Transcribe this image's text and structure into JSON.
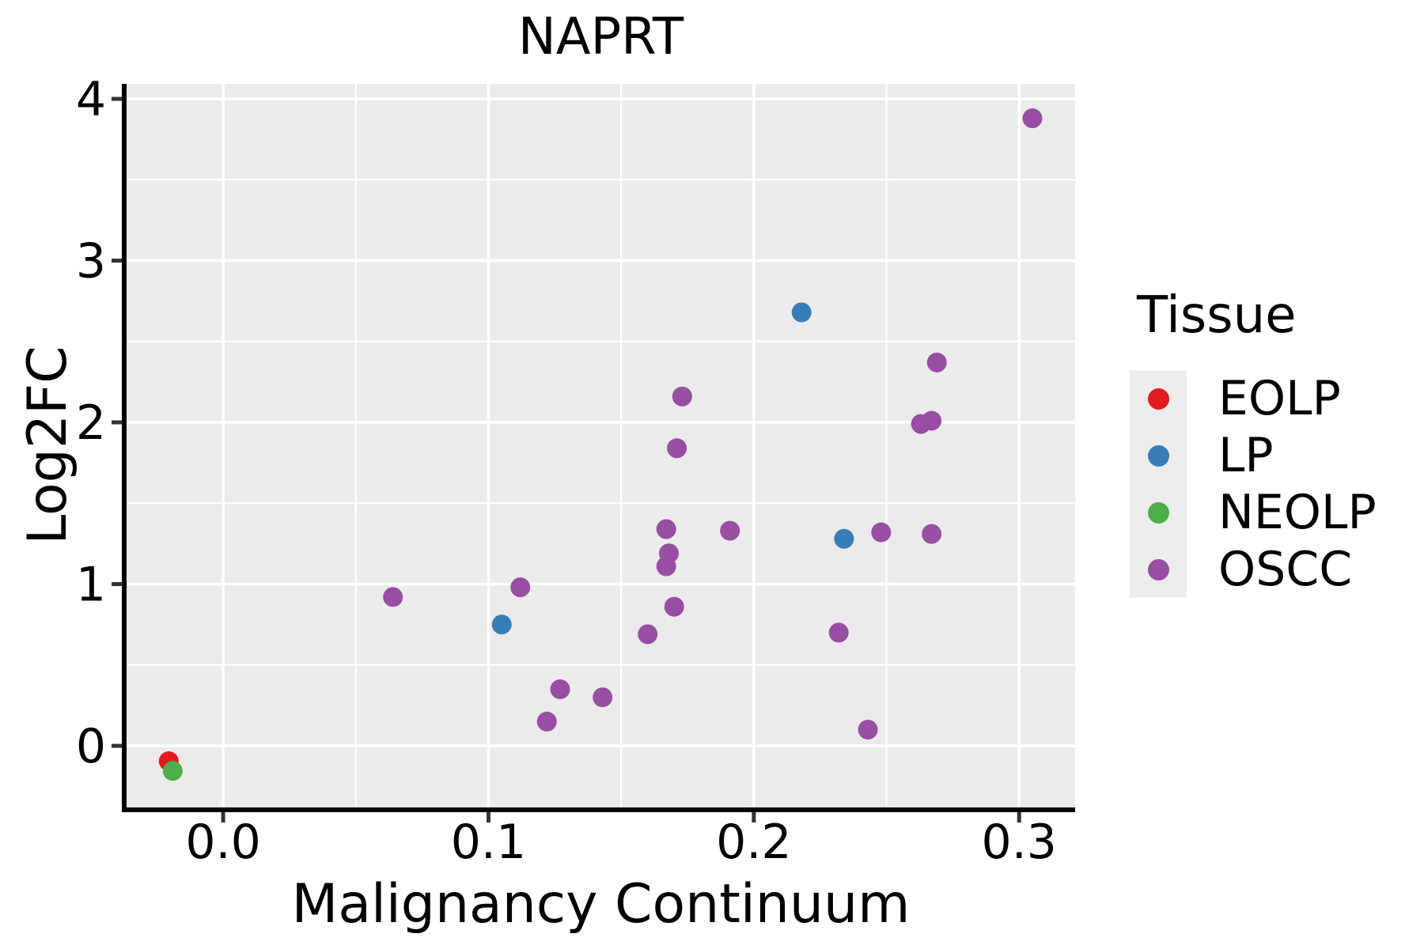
{
  "title": "NAPRT",
  "axes": {
    "x_label": "Malignancy Continuum",
    "y_label": "Log2FC"
  },
  "legend": {
    "title": "Tissue",
    "items": [
      {
        "label": "EOLP",
        "color": "#E41A1C"
      },
      {
        "label": "LP",
        "color": "#377EB8"
      },
      {
        "label": "NEOLP",
        "color": "#4DAF4A"
      },
      {
        "label": "OSCC",
        "color": "#984EA3"
      }
    ]
  },
  "colors": {
    "panel_background": "#EBEBEB",
    "grid": "#FFFFFF",
    "spine": "#000000",
    "tick": "#333333",
    "text": "#000000",
    "legend_key_background": "#ECECEC"
  },
  "chart_data": {
    "type": "scatter",
    "title": "NAPRT",
    "xlabel": "Malignancy Continuum",
    "ylabel": "Log2FC",
    "xlim": [
      -0.0364,
      0.3211
    ],
    "ylim": [
      -0.381,
      4.093
    ],
    "x_ticks": [
      0.0,
      0.1,
      0.2,
      0.3
    ],
    "x_tick_labels": [
      "0.0",
      "0.1",
      "0.2",
      "0.3"
    ],
    "y_ticks": [
      0,
      1,
      2,
      3,
      4
    ],
    "y_tick_labels": [
      "0",
      "1",
      "2",
      "3",
      "4"
    ],
    "x_minor_ticks": [
      0.05,
      0.15,
      0.25
    ],
    "y_minor_ticks": [
      0.5,
      1.5,
      2.5,
      3.5
    ],
    "grid": true,
    "legend_position": "right",
    "marker_radius": 12.5,
    "series": [
      {
        "name": "EOLP",
        "color": "#E41A1C",
        "points": [
          [
            -0.0205,
            -0.095
          ]
        ]
      },
      {
        "name": "LP",
        "color": "#377EB8",
        "points": [
          [
            0.105,
            0.75
          ],
          [
            0.218,
            2.68
          ],
          [
            0.234,
            1.28
          ]
        ]
      },
      {
        "name": "NEOLP",
        "color": "#4DAF4A",
        "points": [
          [
            -0.019,
            -0.155
          ]
        ]
      },
      {
        "name": "OSCC",
        "color": "#984EA3",
        "points": [
          [
            0.064,
            0.92
          ],
          [
            0.112,
            0.98
          ],
          [
            0.122,
            0.15
          ],
          [
            0.127,
            0.35
          ],
          [
            0.143,
            0.3
          ],
          [
            0.16,
            0.69
          ],
          [
            0.167,
            1.34
          ],
          [
            0.168,
            1.19
          ],
          [
            0.167,
            1.11
          ],
          [
            0.17,
            0.86
          ],
          [
            0.171,
            1.84
          ],
          [
            0.173,
            2.16
          ],
          [
            0.191,
            1.33
          ],
          [
            0.232,
            0.7
          ],
          [
            0.243,
            0.1
          ],
          [
            0.248,
            1.32
          ],
          [
            0.263,
            1.99
          ],
          [
            0.267,
            2.01
          ],
          [
            0.267,
            1.31
          ],
          [
            0.269,
            2.37
          ],
          [
            0.305,
            3.88
          ]
        ]
      }
    ]
  }
}
